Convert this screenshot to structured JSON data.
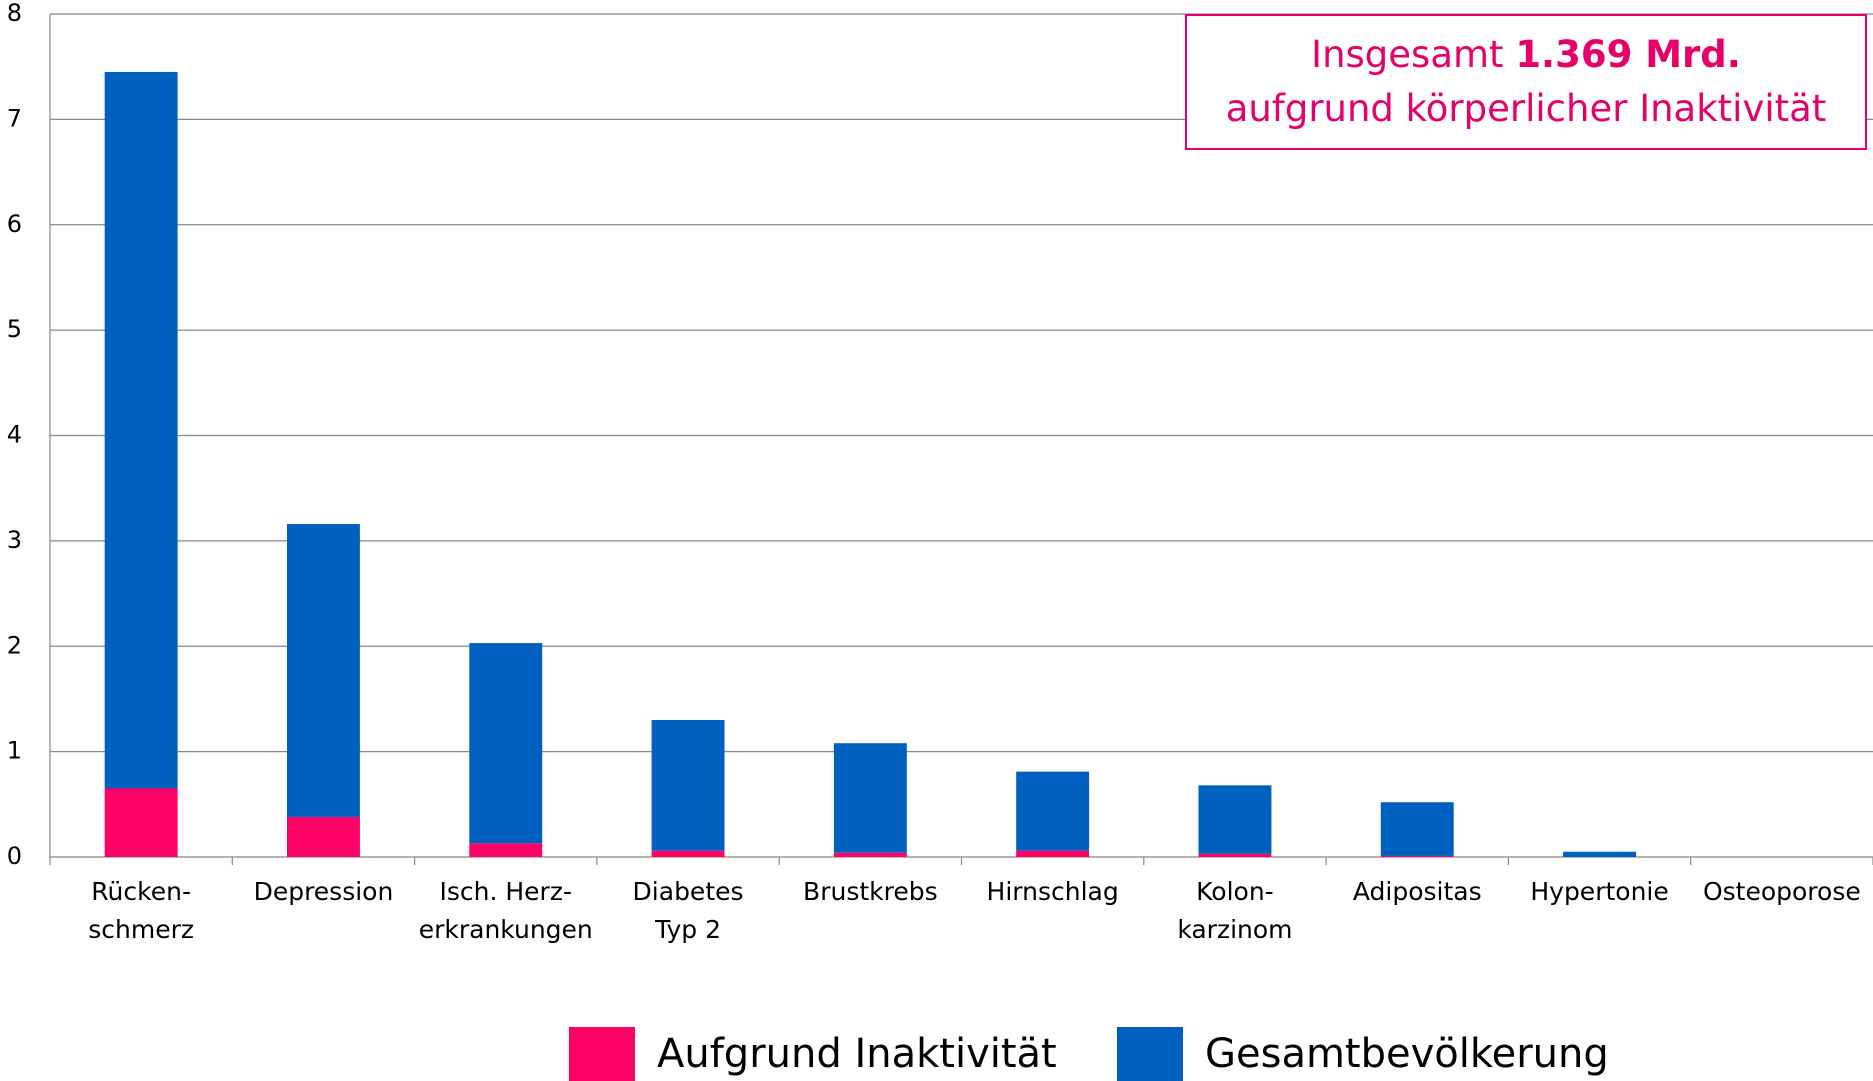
{
  "chart_data": {
    "type": "stacked_bar",
    "categories": [
      "Rücken-\nschmerz",
      "Depression",
      "Isch. Herz-\nerkrankungen",
      "Diabetes\nTyp 2",
      "Brustkrebs",
      "Hirnschlag",
      "Kolon-\nkarzinom",
      "Adipositas",
      "Hypertonie",
      "Osteoporose"
    ],
    "series": [
      {
        "name": "Aufgrund Inaktivität",
        "color": "#ff0066",
        "values": [
          0.65,
          0.38,
          0.13,
          0.06,
          0.04,
          0.06,
          0.03,
          0.01,
          0,
          0
        ]
      },
      {
        "name": "Gesamtbevölkerung",
        "color": "#0060c0",
        "values": [
          6.8,
          2.78,
          1.9,
          1.24,
          1.04,
          0.75,
          0.65,
          0.51,
          0.05,
          0
        ]
      }
    ],
    "ylim": [
      0,
      8
    ],
    "yticks": [
      0,
      1,
      2,
      3,
      4,
      5,
      6,
      7,
      8
    ],
    "grid": true,
    "legend": "bottom",
    "annotation": {
      "prefix": "Insgesamt",
      "bold": "1.369 Mrd.",
      "line2": "aufgrund körperlicher Inaktivität"
    }
  }
}
